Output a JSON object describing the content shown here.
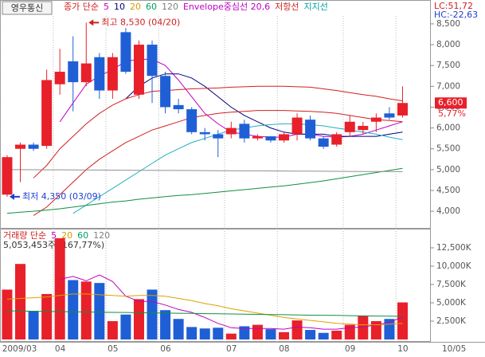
{
  "stock_name": "영우통신",
  "chart_data": [
    {
      "type": "candlestick",
      "legend": [
        {
          "text": "종가 단순",
          "color": "#d02020"
        },
        {
          "text": "5",
          "color": "#c000c0"
        },
        {
          "text": "10",
          "color": "#000080"
        },
        {
          "text": "20",
          "color": "#d0a000"
        },
        {
          "text": "60",
          "color": "#00a060"
        },
        {
          "text": "120",
          "color": "#808080"
        },
        {
          "text": "Envelope중심선 20,6",
          "color": "#c000c0"
        },
        {
          "text": "저항선",
          "color": "#d02020"
        },
        {
          "text": "지지선",
          "color": "#00a0a0"
        }
      ],
      "categories": [
        "2009/03",
        null,
        null,
        null,
        "04",
        null,
        null,
        null,
        "05",
        null,
        null,
        null,
        "06",
        null,
        null,
        null,
        null,
        "07",
        null,
        null,
        null,
        "08",
        null,
        null,
        null,
        null,
        "09",
        null,
        null,
        null,
        "10"
      ],
      "open": [
        4400,
        5500,
        5600,
        5570,
        7050,
        7600,
        7100,
        7700,
        6900,
        8300,
        6800,
        8000,
        7250,
        6550,
        6450,
        5900,
        5850,
        5850,
        6100,
        5750,
        5800,
        5700,
        5850,
        6200,
        5750,
        5600,
        5900,
        5950,
        6150,
        6350,
        6300
      ],
      "high": [
        5350,
        5650,
        5650,
        7400,
        7900,
        8200,
        8530,
        7800,
        7800,
        8400,
        8100,
        8100,
        7350,
        6700,
        6500,
        6000,
        5950,
        6150,
        6200,
        5850,
        5800,
        5900,
        6350,
        6300,
        5800,
        5900,
        6300,
        6150,
        6350,
        6500,
        7000
      ],
      "low": [
        4350,
        4700,
        5450,
        5500,
        6800,
        6400,
        7000,
        6700,
        6700,
        7300,
        6700,
        6600,
        6350,
        6350,
        5850,
        5700,
        5300,
        5750,
        5650,
        5700,
        5650,
        5650,
        5700,
        5700,
        5500,
        5550,
        5800,
        5850,
        5900,
        6200,
        6250
      ],
      "close": [
        5300,
        5600,
        5500,
        7150,
        7350,
        7100,
        7550,
        6900,
        7700,
        7350,
        8000,
        7250,
        6500,
        6450,
        5900,
        5850,
        5750,
        6000,
        5750,
        5800,
        5700,
        5850,
        6250,
        5750,
        5550,
        5850,
        6150,
        6050,
        6250,
        6250,
        6600
      ],
      "up_color": "#e8202a",
      "down_color": "#1f5fd6",
      "lines": [
        {
          "color": "#c000c0",
          "values": [
            null,
            null,
            null,
            null,
            6150,
            6600,
            7050,
            7250,
            7400,
            7600,
            7650,
            7650,
            7500,
            7150,
            6750,
            6350,
            6100,
            5900,
            5850,
            5800,
            5780,
            5780,
            5850,
            5850,
            5800,
            5780,
            5800,
            5850,
            5950,
            6050,
            6150
          ]
        },
        {
          "color": "#000080",
          "values": [
            null,
            null,
            null,
            null,
            null,
            null,
            null,
            null,
            null,
            6700,
            7000,
            7200,
            7300,
            7300,
            7200,
            7000,
            6750,
            6500,
            6300,
            6150,
            6000,
            5900,
            5850,
            5850,
            5850,
            5800,
            5800,
            5800,
            5800,
            5850,
            5900
          ]
        },
        {
          "color": "#d02020",
          "values": [
            null,
            null,
            4800,
            5100,
            5500,
            5800,
            6100,
            6350,
            6550,
            6700,
            6800,
            6880,
            6900,
            6920,
            6940,
            6950,
            6960,
            6980,
            6990,
            7000,
            7000,
            7000,
            6990,
            6980,
            6940,
            6900,
            6850,
            6800,
            6760,
            6700,
            6650
          ]
        },
        {
          "color": "#d02020",
          "values": [
            null,
            null,
            3900,
            4100,
            4400,
            4700,
            5000,
            5250,
            5450,
            5650,
            5800,
            5950,
            6050,
            6150,
            6250,
            6300,
            6350,
            6380,
            6400,
            6420,
            6420,
            6420,
            6410,
            6400,
            6380,
            6350,
            6300,
            6250,
            6200,
            6180,
            6150
          ]
        },
        {
          "color": "#20b0c0",
          "values": [
            null,
            null,
            null,
            null,
            null,
            3950,
            4150,
            4350,
            4550,
            4750,
            4950,
            5150,
            5350,
            5500,
            5650,
            5750,
            5850,
            5950,
            6000,
            6050,
            6080,
            6100,
            6100,
            6080,
            6050,
            6000,
            5950,
            5900,
            5850,
            5780,
            5720
          ]
        },
        {
          "color": "#109040",
          "values": [
            3950,
            3980,
            4000,
            4030,
            4060,
            4100,
            4140,
            4180,
            4220,
            4250,
            4290,
            4320,
            4350,
            4380,
            4400,
            4430,
            4460,
            4490,
            4520,
            4550,
            4580,
            4610,
            4650,
            4690,
            4730,
            4780,
            4830,
            4880,
            4930,
            4980,
            5030
          ]
        },
        {
          "color": "#909090",
          "values": [
            5000,
            5000,
            4998,
            4996,
            4995,
            4993,
            4991,
            4990,
            4988,
            4986,
            4985,
            4983,
            4981,
            4980,
            4978,
            4976,
            4975,
            4973,
            4971,
            4970,
            4968,
            4966,
            4965,
            4963,
            4961,
            4960,
            4958,
            4956,
            4955,
            4953,
            4950
          ]
        }
      ],
      "ylim": [
        3620,
        8690
      ],
      "yticks": [
        {
          "value": 4000,
          "label": "4,000"
        },
        {
          "value": 4500,
          "label": "4,500"
        },
        {
          "value": 5000,
          "label": "5,000"
        },
        {
          "value": 5500,
          "label": "5,500"
        },
        {
          "value": 6000,
          "label": "6,000"
        },
        {
          "value": 6500,
          "label": "6,500"
        },
        {
          "value": 7000,
          "label": "7,000"
        },
        {
          "value": 7500,
          "label": "7,500"
        },
        {
          "value": 8000,
          "label": "8,000"
        },
        {
          "value": 8500,
          "label": "8,500"
        }
      ],
      "annotations": [
        {
          "text": "최고 8,530 (04/20)",
          "color": "#d02020"
        },
        {
          "text": "최저 4,350 (03/09)",
          "color": "#1f3fd0"
        }
      ],
      "last_label": "6,600",
      "change_label": "5,77%",
      "lc": "LC:51,72",
      "hc": "HC:-22,63",
      "date_label": "10/05"
    },
    {
      "type": "volume",
      "legend": [
        {
          "text": "거래량 단순",
          "color": "#d02020"
        },
        {
          "text": "5",
          "color": "#c000c0"
        },
        {
          "text": "20",
          "color": "#d0a000"
        },
        {
          "text": "60",
          "color": "#00a060"
        },
        {
          "text": "120",
          "color": "#808080"
        }
      ],
      "summary": "5,053,453주 (167,77%)",
      "values": [
        6800,
        10300,
        3900,
        6200,
        13800,
        8100,
        7900,
        7700,
        2500,
        3400,
        5500,
        6800,
        4000,
        2800,
        1700,
        1500,
        1600,
        800,
        1800,
        2000,
        1400,
        1000,
        2600,
        1300,
        900,
        1200,
        2000,
        3200,
        2500,
        2800,
        5053
      ],
      "lines": [
        {
          "color": "#c000c0",
          "values": [
            null,
            null,
            null,
            null,
            8200,
            8600,
            8000,
            8800,
            7900,
            5900,
            5200,
            5200,
            4700,
            4100,
            3700,
            3000,
            2200,
            1600,
            1500,
            1500,
            1500,
            1400,
            1700,
            1600,
            1400,
            1400,
            1600,
            1700,
            2000,
            2300,
            3100
          ]
        },
        {
          "color": "#e0a000",
          "values": [
            5500,
            5600,
            5700,
            5800,
            6000,
            6200,
            6200,
            6100,
            6000,
            5900,
            6000,
            6000,
            5900,
            5600,
            5300,
            4900,
            4600,
            4200,
            3900,
            3600,
            3300,
            3000,
            2800,
            2600,
            2400,
            2200,
            2100,
            2000,
            2000,
            2100,
            2200
          ]
        },
        {
          "color": "#109040",
          "values": [
            3900,
            3880,
            3850,
            3820,
            3800,
            3780,
            3750,
            3720,
            3700,
            3680,
            3650,
            3620,
            3600,
            3580,
            3550,
            3520,
            3500,
            3480,
            3450,
            3420,
            3400,
            3380,
            3350,
            3320,
            3300,
            3280,
            3250,
            3220,
            3200,
            3180,
            3150
          ]
        }
      ],
      "ylim": [
        0,
        14780
      ],
      "yticks": [
        {
          "value": 2500,
          "label": "2,500K"
        },
        {
          "value": 5000,
          "label": "5,000K"
        },
        {
          "value": 7500,
          "label": "7,500K"
        },
        {
          "value": 10000,
          "label": "10,000K"
        },
        {
          "value": 12500,
          "label": "12,500K"
        }
      ]
    }
  ]
}
